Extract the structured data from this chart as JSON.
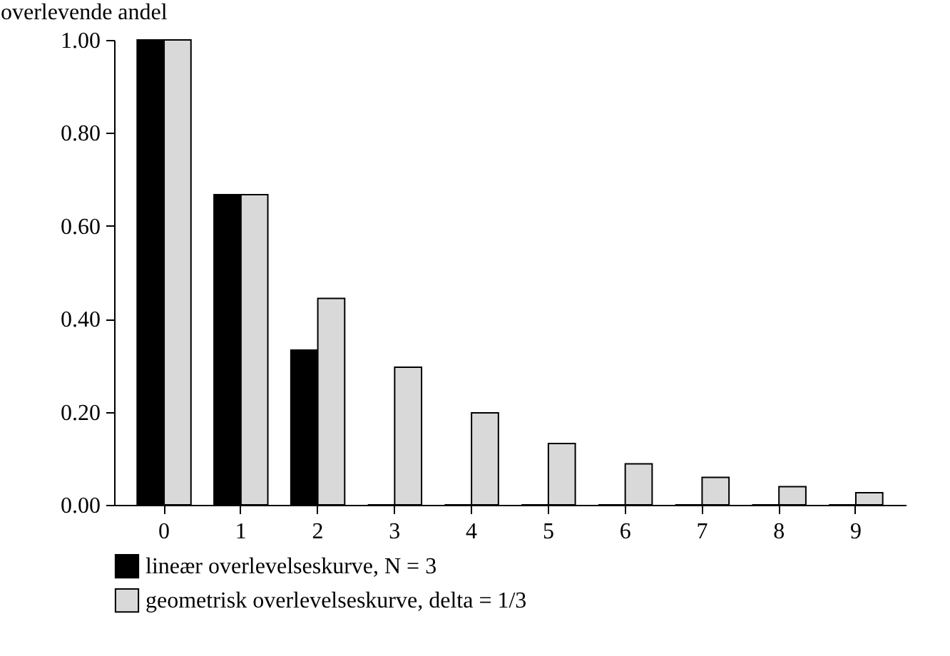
{
  "chart_data": {
    "type": "bar",
    "ylabel": "overlevende andel",
    "categories": [
      "0",
      "1",
      "2",
      "3",
      "4",
      "5",
      "6",
      "7",
      "8",
      "9"
    ],
    "series": [
      {
        "name": "lineær overlevelseskurve, N = 3",
        "color": "#000000",
        "values": [
          1,
          0.667,
          0.333,
          0,
          0,
          0,
          0,
          0,
          0,
          0
        ]
      },
      {
        "name": "geometrisk overlevelseskurve, delta = 1/3",
        "color": "#d9d9d9",
        "values": [
          1,
          0.667,
          0.444,
          0.296,
          0.198,
          0.132,
          0.088,
          0.059,
          0.039,
          0.026
        ]
      }
    ],
    "ylim": [
      0,
      1
    ],
    "yticks": [
      {
        "value": 0,
        "label": "0.00"
      },
      {
        "value": 0.2,
        "label": "0.20"
      },
      {
        "value": 0.4,
        "label": "0.40"
      },
      {
        "value": 0.6,
        "label": "0.60"
      },
      {
        "value": 0.8,
        "label": "0.80"
      },
      {
        "value": 1,
        "label": "1.00"
      }
    ],
    "grid": false,
    "legend": "bottom"
  }
}
